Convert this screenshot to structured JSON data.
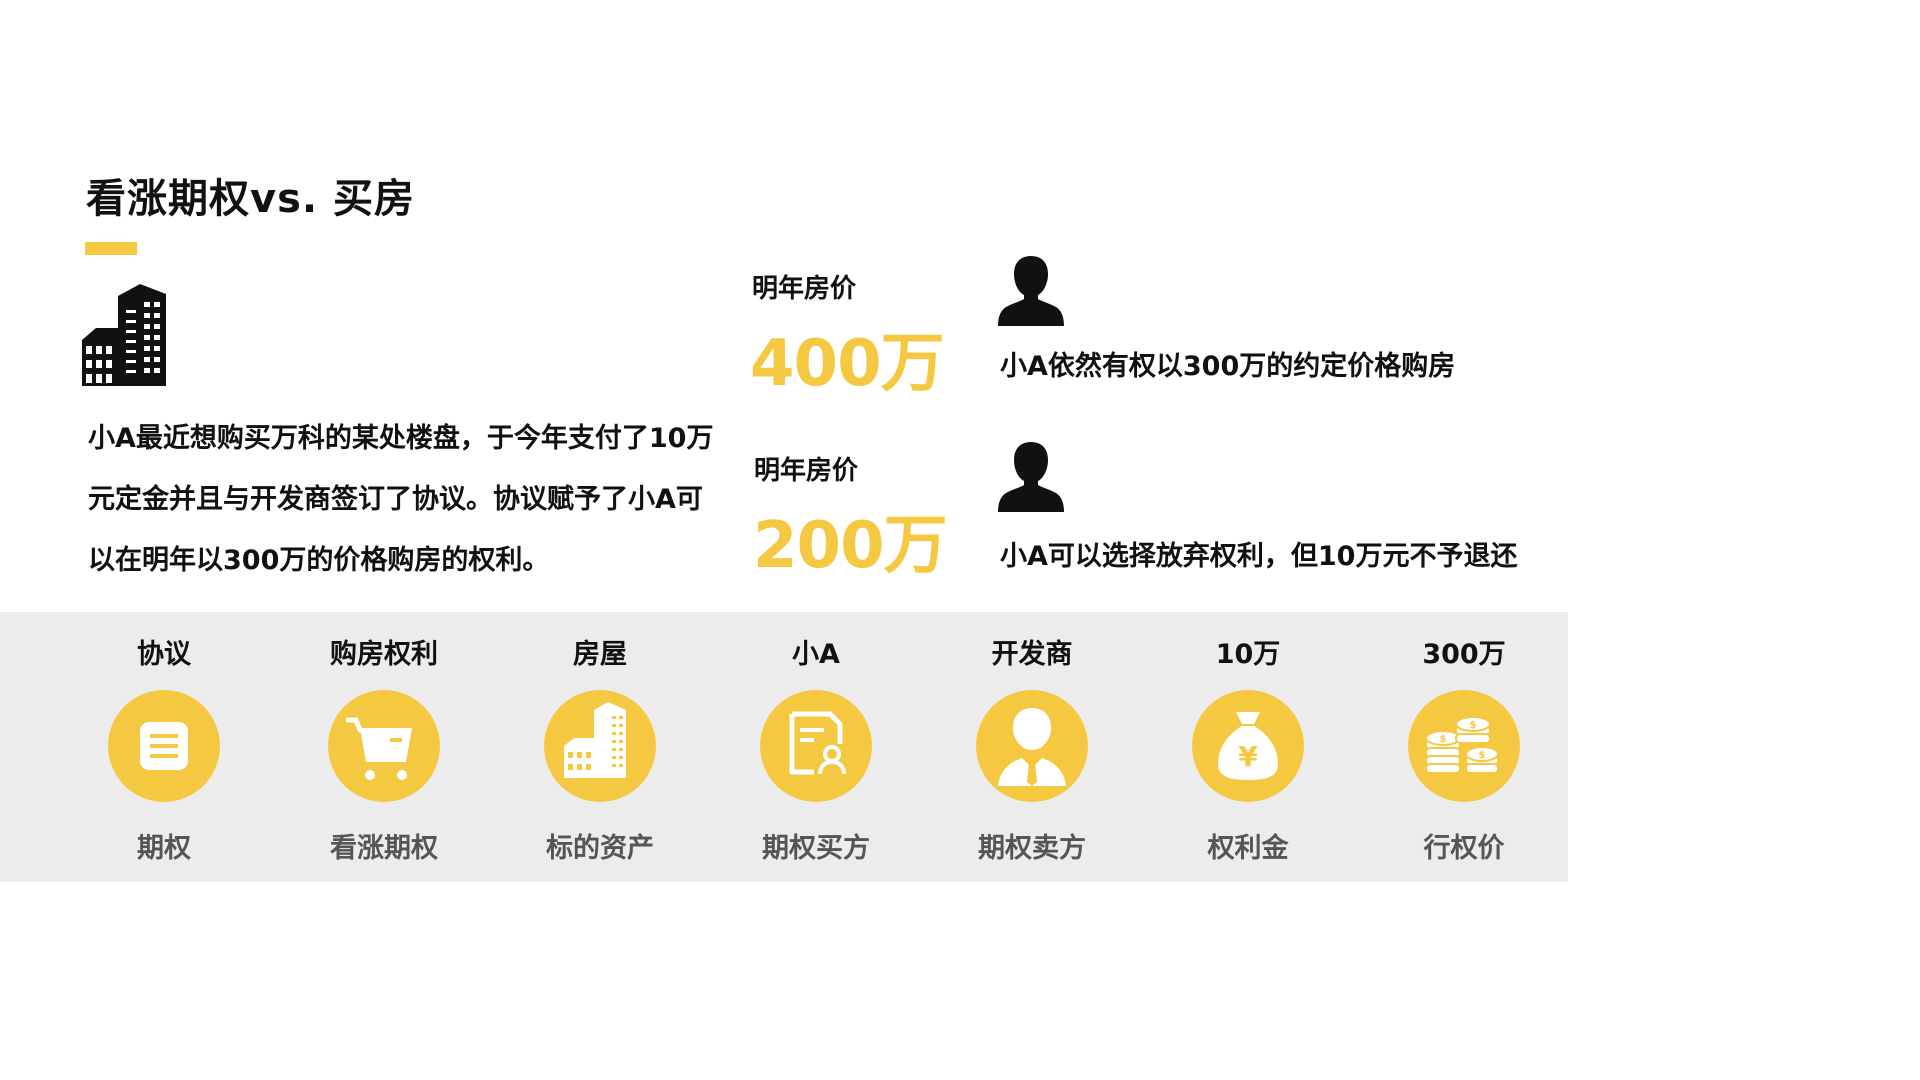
{
  "colors": {
    "accent": "#F5C842",
    "text": "#111111",
    "muted": "#555555",
    "band": "#ECECEC"
  },
  "title": "看涨期权vs. 买房",
  "story": "小A最近想购买万科的某处楼盘，于今年支付了10万元定金并且与开发商签订了协议。协议赋予了小A可以在明年以300万的价格购房的权利。",
  "scenarios": [
    {
      "label": "明年房价",
      "price": "400万",
      "text": "小A依然有权以300万的约定价格购房",
      "icon": "person-silhouette-icon"
    },
    {
      "label": "明年房价",
      "price": "200万",
      "text": "小A可以选择放弃权利，但10万元不予退还",
      "icon": "person-silhouette-icon"
    }
  ],
  "terms": [
    {
      "top": "协议",
      "bottom": "期权",
      "icon": "document-list-icon"
    },
    {
      "top": "购房权利",
      "bottom": "看涨期权",
      "icon": "shopping-cart-icon"
    },
    {
      "top": "房屋",
      "bottom": "标的资产",
      "icon": "building-icon"
    },
    {
      "top": "小A",
      "bottom": "期权买方",
      "icon": "contract-user-icon"
    },
    {
      "top": "开发商",
      "bottom": "期权卖方",
      "icon": "businessman-icon"
    },
    {
      "top": "10万",
      "bottom": "权利金",
      "icon": "money-bag-yen-icon"
    },
    {
      "top": "300万",
      "bottom": "行权价",
      "icon": "coin-stacks-icon"
    }
  ]
}
